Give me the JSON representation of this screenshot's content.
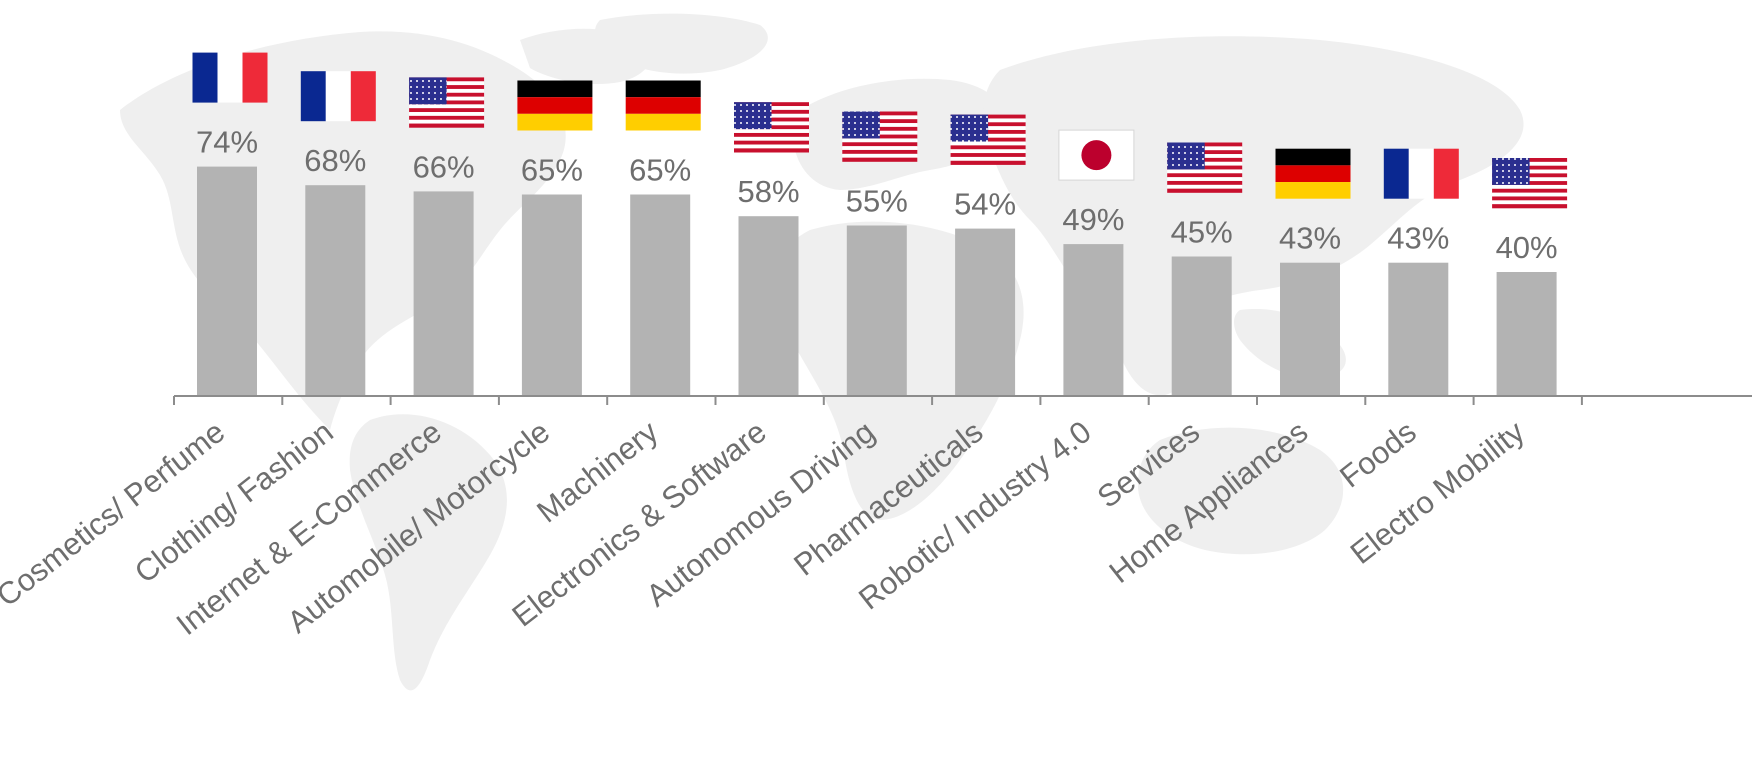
{
  "chart_data": {
    "type": "bar",
    "categories": [
      "Cosmetics/ Perfume",
      "Clothing/ Fashion",
      "Internet & E-Commerce",
      "Automobile/ Motorcycle",
      "Machinery",
      "Electronics & Software",
      "Autonomous Driving",
      "Pharmaceuticals",
      "Robotic/ Industry 4.0",
      "Services",
      "Home Appliances",
      "Foods",
      "Electro Mobility"
    ],
    "values": [
      74,
      68,
      66,
      65,
      65,
      58,
      55,
      54,
      49,
      45,
      43,
      43,
      40
    ],
    "value_labels": [
      "74%",
      "68%",
      "66%",
      "65%",
      "65%",
      "58%",
      "55%",
      "54%",
      "49%",
      "45%",
      "43%",
      "43%",
      "40%"
    ],
    "flags": [
      "france",
      "france",
      "usa",
      "germany",
      "germany",
      "usa",
      "usa",
      "usa",
      "japan",
      "usa",
      "germany",
      "france",
      "usa"
    ],
    "ylim": [
      0,
      100
    ],
    "grid": false,
    "legend": "none",
    "colors": {
      "bar": "#b3b3b3",
      "axis": "#8c8c8c",
      "text": "#6e6e6e",
      "map": "#efefef"
    },
    "background_icon": "world-map-icon"
  }
}
